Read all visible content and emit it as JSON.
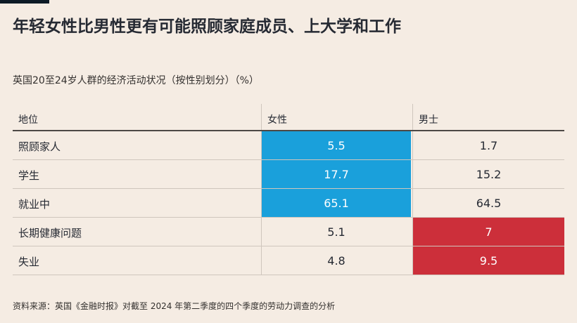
{
  "title": "年轻女性比男性更有可能照顾家庭成员、上大学和工作",
  "subtitle": "英国20至24岁人群的经济活动状况（按性别划分）（%）",
  "source": "资料来源：英国《金融时报》对截至 2024 年第二季度的四个季度的劳动力调查的分析",
  "colors": {
    "background": "#f5ece3",
    "female_highlight": "#1aa0db",
    "male_highlight": "#cc2f3a",
    "text": "#262a33",
    "highlight_text": "#ffffff"
  },
  "chart_data": {
    "type": "table",
    "headers": [
      "地位",
      "女性",
      "男士"
    ],
    "rows": [
      {
        "label": "照顾家人",
        "female": "5.5",
        "male": "1.7",
        "highlight": "female"
      },
      {
        "label": "学生",
        "female": "17.7",
        "male": "15.2",
        "highlight": "female"
      },
      {
        "label": "就业中",
        "female": "65.1",
        "male": "64.5",
        "highlight": "female"
      },
      {
        "label": "长期健康问题",
        "female": "5.1",
        "male": "7",
        "highlight": "male"
      },
      {
        "label": "失业",
        "female": "4.8",
        "male": "9.5",
        "highlight": "male"
      }
    ]
  }
}
